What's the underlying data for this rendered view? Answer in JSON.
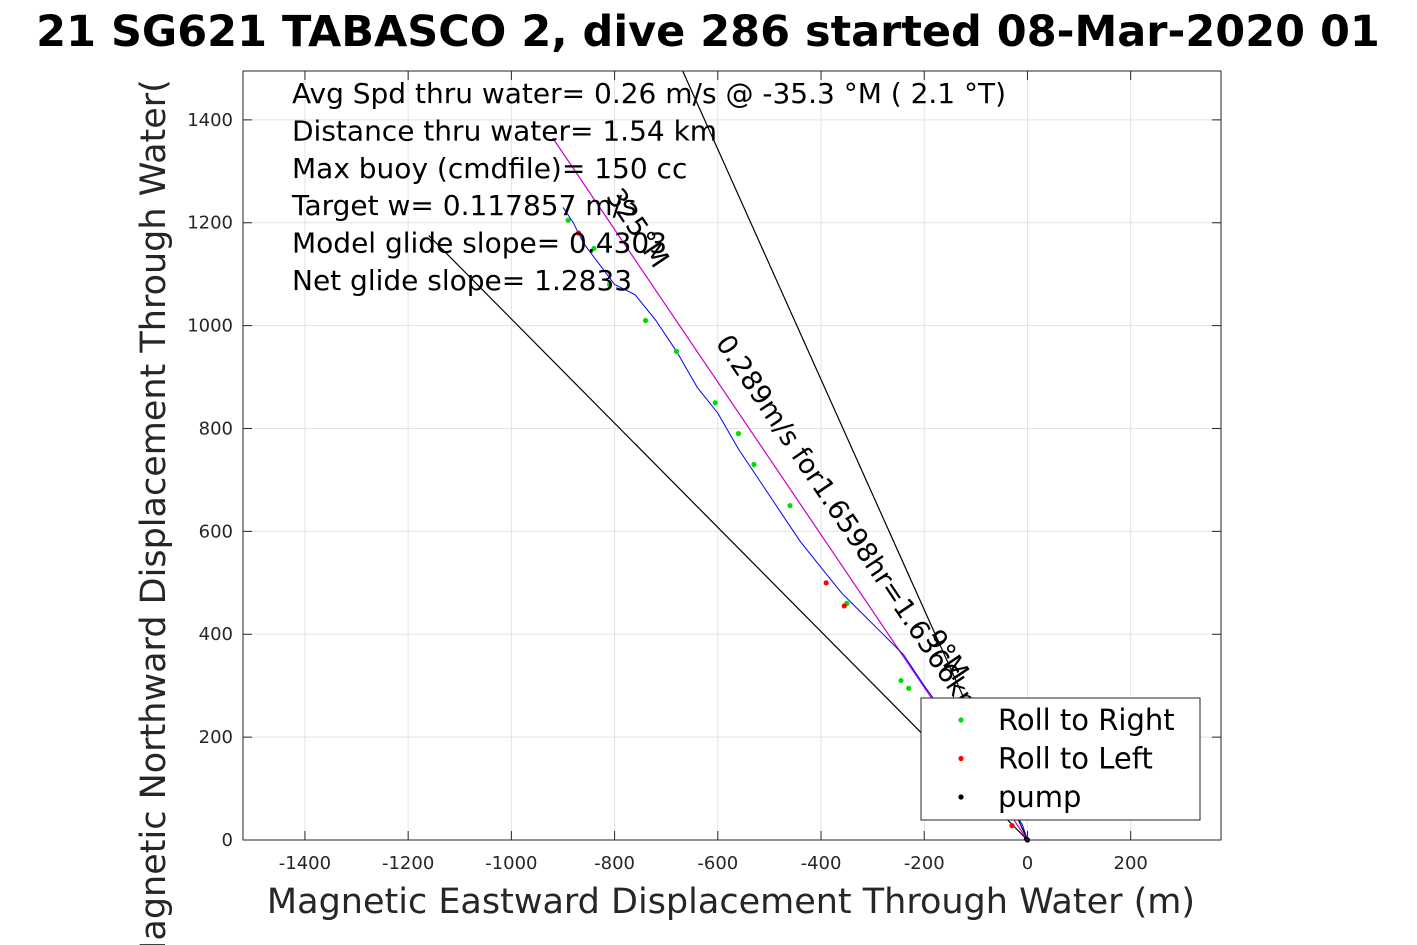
{
  "chart_data": {
    "type": "line",
    "title": "21 SG621 TABASCO 2, dive 286 started 08-Mar-2020 01",
    "xlabel": "Magnetic Eastward Displacement Through Water (m)",
    "ylabel": "Magnetic Northward Displacement Through Water(",
    "xlim": [
      -1520,
      375
    ],
    "ylim": [
      0,
      1495
    ],
    "xticks": [
      -1400,
      -1200,
      -1000,
      -800,
      -600,
      -400,
      -200,
      0,
      200
    ],
    "yticks": [
      0,
      200,
      400,
      600,
      800,
      1000,
      1200,
      1400
    ],
    "xtick_labels": [
      "-1400",
      "-1200",
      "-1000",
      "-800",
      "-600",
      "-400",
      "-200",
      "0",
      "200"
    ],
    "ytick_labels": [
      "0",
      "200",
      "400",
      "600",
      "800",
      "1000",
      "1200",
      "1400"
    ],
    "grid": true,
    "legend_position": "bottom-right",
    "annotations": [
      "Avg Spd thru water=  0.26 m/s @ -35.3 °M (  2.1 °T)",
      "Distance thru water=  1.54 km",
      "Max buoy (cmdfile)= 150 cc",
      "Target w= 0.117857 m/s",
      "Model glide slope= 0.4303",
      "Net glide slope= 1.2833"
    ],
    "rotated_labels": [
      {
        "text": "0.289m/s for1.6598hr=1.6366km",
        "angle": 56.1,
        "x": -360,
        "y": 600
      },
      {
        "text": "325°M",
        "angle": 56.1,
        "x": -770,
        "y": 1180
      },
      {
        "text": "9°M",
        "angle": 56.1,
        "x": -170,
        "y": 350
      }
    ],
    "cone_lines": [
      {
        "name": "left-bound",
        "x": [
          0,
          -1160
        ],
        "y": [
          0,
          1175
        ]
      },
      {
        "name": "right-bound",
        "x": [
          0,
          -668
        ],
        "y": [
          0,
          1495
        ]
      }
    ],
    "direction_line": {
      "x": [
        0,
        -920
      ],
      "y": [
        0,
        1365
      ],
      "color": "#cc00cc"
    },
    "track": {
      "color": "#0000ff",
      "x": [
        0,
        -10,
        -30,
        -60,
        -100,
        -150,
        -200,
        -240,
        -280,
        -330,
        -360,
        -400,
        -440,
        -480,
        -520,
        -560,
        -600,
        -640,
        -680,
        -720,
        -760,
        -800,
        -830,
        -860,
        -880,
        -900
      ],
      "y": [
        0,
        30,
        60,
        100,
        150,
        230,
        300,
        360,
        400,
        450,
        480,
        530,
        580,
        640,
        700,
        760,
        830,
        880,
        950,
        1010,
        1060,
        1080,
        1120,
        1160,
        1200,
        1230
      ]
    },
    "series": [
      {
        "name": "Roll to Right",
        "color": "#00dd00",
        "x": [
          -230,
          -245,
          -350,
          -460,
          -530,
          -560,
          -605,
          -680,
          -740,
          -810,
          -840,
          -890
        ],
        "y": [
          295,
          310,
          460,
          650,
          730,
          790,
          850,
          950,
          1010,
          1080,
          1150,
          1205
        ]
      },
      {
        "name": "Roll to Left",
        "color": "#ff0000",
        "x": [
          -30,
          -355,
          -390,
          -870
        ],
        "y": [
          28,
          455,
          500,
          1180
        ]
      },
      {
        "name": "pump",
        "color": "#000000",
        "x": [
          0,
          -2
        ],
        "y": [
          0,
          2
        ]
      }
    ]
  }
}
